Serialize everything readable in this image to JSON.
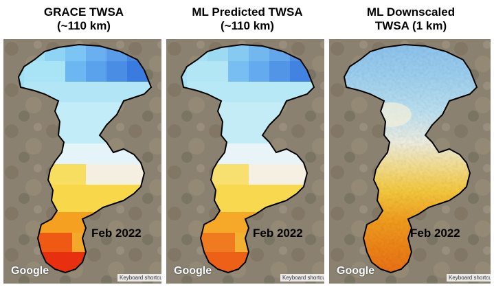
{
  "panels": [
    {
      "title_line1": "GRACE TWSA",
      "title_line2": "(~110 km)",
      "date": "Feb 2022",
      "attribution": "Google",
      "keyboard": "Keyboard shortcuts"
    },
    {
      "title_line1": "ML Predicted TWSA",
      "title_line2": "(~110 km)",
      "date": "Feb 2022",
      "attribution": "Google",
      "keyboard": "Keyboard shortcuts"
    },
    {
      "title_line1": "ML Downscaled",
      "title_line2": "TWSA (1 km)",
      "date": "Feb 2022",
      "attribution": "Google",
      "keyboard": "Keyboard shortcuts"
    }
  ],
  "colors": {
    "deep_blue": "#3a7be0",
    "light_blue": "#a8e4f5",
    "cyan": "#8fdaf0",
    "pale": "#e8f4f8",
    "yellow": "#f8d84a",
    "orange": "#f5a020",
    "red": "#e83010"
  }
}
